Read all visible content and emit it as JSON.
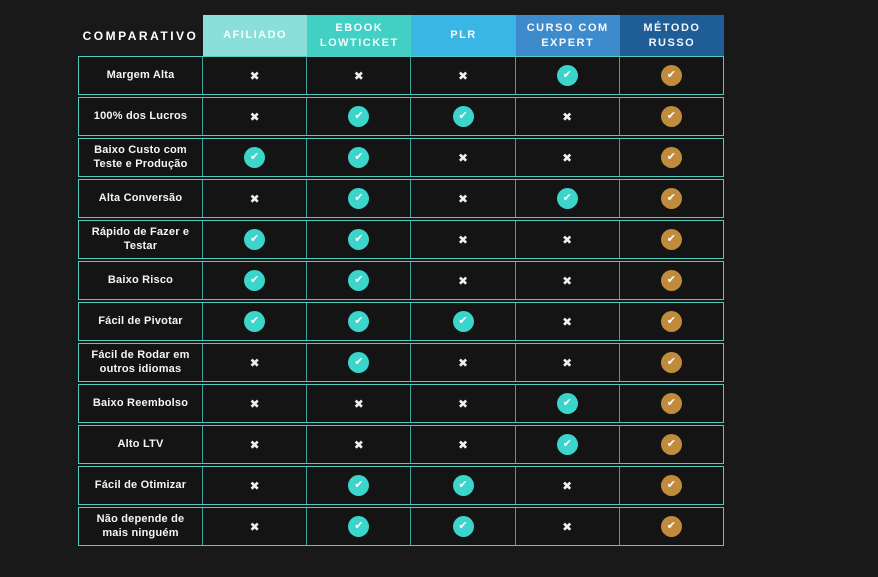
{
  "chart_data": {
    "type": "table",
    "corner_label": "COMPARATIVO",
    "columns": [
      {
        "label": "AFILIADO",
        "header_color": "#8ADFDB",
        "check_color": "#3BD5CB"
      },
      {
        "label": "EBOOK LOWTICKET",
        "header_color": "#42CFC4",
        "check_color": "#3BD5CB"
      },
      {
        "label": "PLR",
        "header_color": "#39B6E4",
        "check_color": "#3BD5CB"
      },
      {
        "label": "CURSO COM EXPERT",
        "header_color": "#3E8BCB",
        "check_color": "#3BD5CB"
      },
      {
        "label": "MÉTODO RUSSO",
        "header_color": "#1E5D96",
        "check_color": "#C08B3D"
      }
    ],
    "rows": [
      {
        "label": "Margem Alta",
        "values": [
          "no",
          "no",
          "no",
          "yes",
          "yes"
        ]
      },
      {
        "label": "100% dos Lucros",
        "values": [
          "no",
          "yes",
          "yes",
          "no",
          "yes"
        ]
      },
      {
        "label": "Baixo Custo com Teste e Produção",
        "values": [
          "yes",
          "yes",
          "no",
          "no",
          "yes"
        ]
      },
      {
        "label": "Alta Conversão",
        "values": [
          "no",
          "yes",
          "no",
          "yes",
          "yes"
        ]
      },
      {
        "label": "Rápido de Fazer e Testar",
        "values": [
          "yes",
          "yes",
          "no",
          "no",
          "yes"
        ]
      },
      {
        "label": "Baixo Risco",
        "values": [
          "yes",
          "yes",
          "no",
          "no",
          "yes"
        ]
      },
      {
        "label": "Fácil de Pivotar",
        "values": [
          "yes",
          "yes",
          "yes",
          "no",
          "yes"
        ]
      },
      {
        "label": "Fácil de Rodar em outros idiomas",
        "values": [
          "no",
          "yes",
          "no",
          "no",
          "yes"
        ]
      },
      {
        "label": "Baixo Reembolso",
        "values": [
          "no",
          "no",
          "no",
          "yes",
          "yes"
        ]
      },
      {
        "label": "Alto LTV",
        "values": [
          "no",
          "no",
          "no",
          "yes",
          "yes"
        ]
      },
      {
        "label": "Fácil de Otimizar",
        "values": [
          "no",
          "yes",
          "yes",
          "no",
          "yes"
        ]
      },
      {
        "label": "Não depende de mais ninguém",
        "values": [
          "no",
          "yes",
          "yes",
          "no",
          "yes"
        ]
      }
    ],
    "icons": {
      "check": "✔",
      "cross": "✖"
    },
    "style": {
      "page_background": "#191919",
      "cell_background": "#141414",
      "row_border": "#56C8BE",
      "column_divider": "#3FA29A",
      "cross_color": "#EFEFEF",
      "label_text_color": "#F5F5F5",
      "header_text_color": "#FFFFFF"
    }
  }
}
